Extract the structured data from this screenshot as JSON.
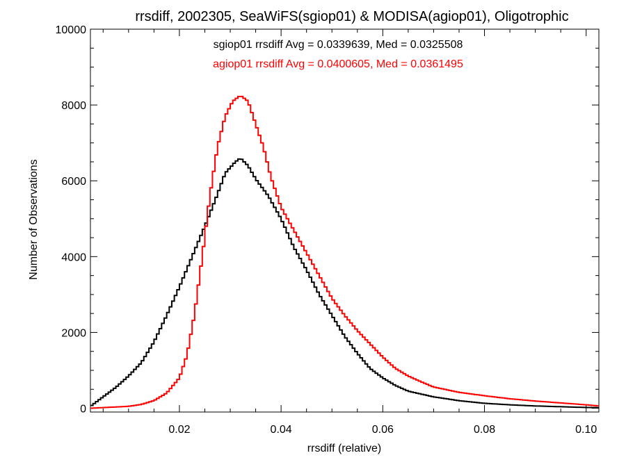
{
  "chart_data": {
    "type": "line",
    "title": "rrsdiff, 2002305, SeaWiFS(sgiop01) & MODISA(agiop01), Oligotrophic",
    "xlabel": "rrsdiff (relative)",
    "ylabel": "Number of Observations",
    "xlim": [
      0.0025,
      0.1025
    ],
    "ylim": [
      -100,
      10000
    ],
    "xticks": [
      0.02,
      0.04,
      0.06,
      0.08,
      0.1
    ],
    "xtick_labels": [
      "0.02",
      "0.04",
      "0.06",
      "0.08",
      "0.10"
    ],
    "yticks": [
      0,
      2000,
      4000,
      6000,
      8000,
      10000
    ],
    "ytick_labels": [
      "0",
      "2000",
      "4000",
      "6000",
      "8000",
      "10000"
    ],
    "grid": false,
    "annotations": [
      {
        "text": "sgiop01 rrsdiff Avg = 0.0339639, Med = 0.0325508",
        "color": "#000000"
      },
      {
        "text": "agiop01 rrsdiff Avg = 0.0400605, Med = 0.0361495",
        "color": "#ff0000"
      }
    ],
    "series": [
      {
        "color": "#000000",
        "x": [
          0.0025,
          0.005,
          0.0075,
          0.01,
          0.0125,
          0.015,
          0.0175,
          0.02,
          0.0225,
          0.025,
          0.0275,
          0.029,
          0.031,
          0.032,
          0.0335,
          0.035,
          0.0375,
          0.04,
          0.0425,
          0.045,
          0.0475,
          0.05,
          0.0525,
          0.055,
          0.0575,
          0.06,
          0.0625,
          0.065,
          0.07,
          0.075,
          0.08,
          0.085,
          0.09,
          0.095,
          0.1,
          0.1025
        ],
        "y": [
          50,
          300,
          550,
          850,
          1200,
          1750,
          2450,
          3200,
          4000,
          4800,
          5650,
          6200,
          6500,
          6600,
          6400,
          6050,
          5600,
          5000,
          4250,
          3650,
          3000,
          2450,
          1900,
          1450,
          1050,
          800,
          600,
          450,
          300,
          200,
          130,
          90,
          60,
          40,
          20,
          15
        ]
      },
      {
        "color": "#ff0000",
        "x": [
          0.0025,
          0.01,
          0.0125,
          0.015,
          0.0175,
          0.02,
          0.0215,
          0.023,
          0.0245,
          0.026,
          0.0275,
          0.029,
          0.0305,
          0.032,
          0.0335,
          0.035,
          0.0365,
          0.038,
          0.04,
          0.0425,
          0.045,
          0.0475,
          0.05,
          0.0525,
          0.055,
          0.0575,
          0.06,
          0.0625,
          0.065,
          0.0675,
          0.07,
          0.075,
          0.08,
          0.085,
          0.09,
          0.095,
          0.1,
          0.1025
        ],
        "y": [
          0,
          50,
          100,
          200,
          400,
          800,
          1400,
          2500,
          4000,
          5600,
          6900,
          7700,
          8100,
          8250,
          8100,
          7500,
          6900,
          6100,
          5300,
          4700,
          4100,
          3500,
          2900,
          2450,
          2050,
          1700,
          1350,
          1050,
          850,
          700,
          560,
          420,
          330,
          250,
          190,
          140,
          90,
          60
        ]
      }
    ]
  }
}
